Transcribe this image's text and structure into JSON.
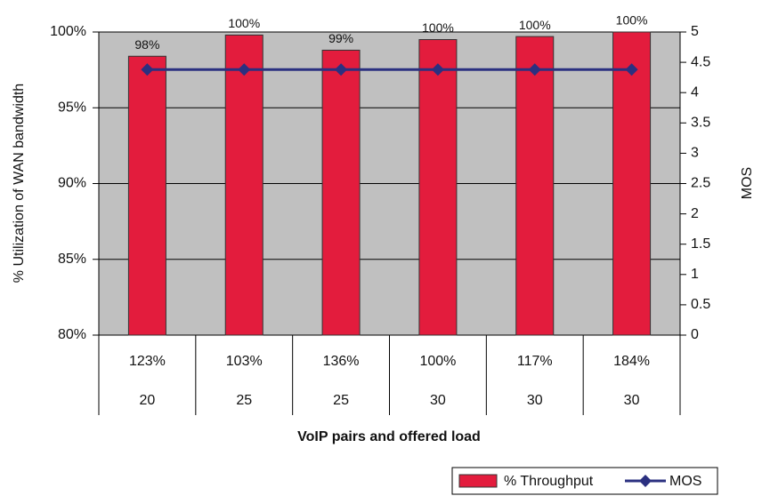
{
  "chart_data": {
    "type": "bar",
    "x_label": "VoIP pairs and offered load",
    "y_label": "% Utilization of WAN bandwidth",
    "y2_label": "MOS",
    "categories": [
      "123%",
      "103%",
      "136%",
      "100%",
      "117%",
      "184%"
    ],
    "category_groups": [
      "20",
      "25",
      "25",
      "30",
      "30",
      "30"
    ],
    "series": [
      {
        "name": "% Throughput",
        "type": "bar",
        "color": "#e31c3d",
        "values": [
          98.4,
          99.8,
          98.8,
          99.5,
          99.7,
          100
        ],
        "value_labels": [
          "98%",
          "100%",
          "99%",
          "100%",
          "100%",
          "100%"
        ]
      },
      {
        "name": "MOS",
        "type": "line",
        "axis": "y2",
        "color": "#2b3080",
        "values": [
          4.38,
          4.38,
          4.38,
          4.38,
          4.38,
          4.38
        ]
      }
    ],
    "ylim": [
      80,
      100
    ],
    "yticks": [
      {
        "value": 80,
        "label": "80%"
      },
      {
        "value": 85,
        "label": "85%"
      },
      {
        "value": 90,
        "label": "90%"
      },
      {
        "value": 95,
        "label": "95%"
      },
      {
        "value": 100,
        "label": "100%"
      }
    ],
    "y2lim": [
      0,
      5
    ],
    "y2ticks": [
      0,
      0.5,
      1,
      1.5,
      2,
      2.5,
      3,
      3.5,
      4,
      4.5,
      5
    ],
    "grid": true,
    "legend": "bottom-right"
  }
}
